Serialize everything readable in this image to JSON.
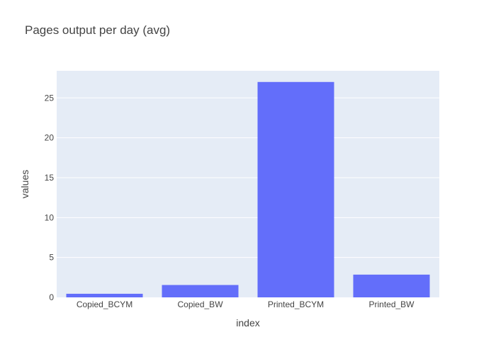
{
  "chart_data": {
    "type": "bar",
    "title": "Pages output per day (avg)",
    "xlabel": "index",
    "ylabel": "values",
    "categories": [
      "Copied_BCYM",
      "Copied_BW",
      "Printed_BCYM",
      "Printed_BW"
    ],
    "values": [
      0.45,
      1.55,
      27.0,
      2.85
    ],
    "ylim": [
      0,
      28.4
    ],
    "yticks": [
      0,
      5,
      10,
      15,
      20,
      25
    ],
    "grid": true,
    "legend": "none",
    "colors": {
      "bar": "#636efa",
      "plot_bg": "#e5ecf6",
      "grid": "#ffffff"
    }
  }
}
